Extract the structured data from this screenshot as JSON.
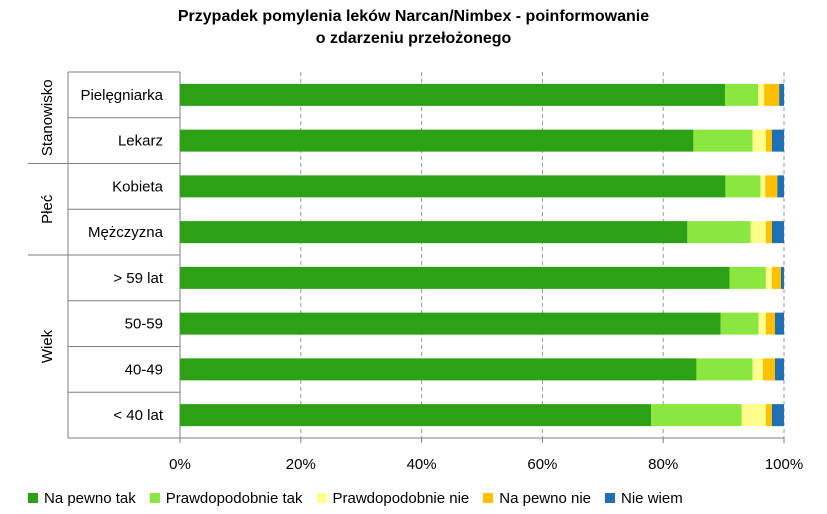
{
  "chart_data": {
    "type": "bar",
    "orientation": "horizontal",
    "stacked": "percent",
    "title": [
      "Przypadek pomylenia leków  Narcan/Nimbex - poinformowanie",
      "o zdarzeniu przełożonego"
    ],
    "xlim": [
      0,
      100
    ],
    "x_ticks": [
      "0%",
      "20%",
      "40%",
      "60%",
      "80%",
      "100%"
    ],
    "grid": "vertical dashed",
    "legend_position": "bottom",
    "groups": [
      {
        "label": "Stanowisko",
        "categories": [
          "Pielęgniarka",
          "Lekarz"
        ]
      },
      {
        "label": "Płeć",
        "categories": [
          "Kobieta",
          "Mężczyzna"
        ]
      },
      {
        "label": "Wiek",
        "categories": [
          "> 59 lat",
          "50-59",
          "40-49",
          "< 40 lat"
        ]
      }
    ],
    "categories": [
      "Pielęgniarka",
      "Lekarz",
      "Kobieta",
      "Mężczyzna",
      "> 59 lat",
      "50-59",
      "40-49",
      "< 40 lat"
    ],
    "series": [
      {
        "name": "Na pewno tak",
        "color": "#2ca116",
        "values": [
          90.5,
          85.0,
          90.3,
          84.0,
          91.0,
          89.5,
          85.5,
          78.0
        ]
      },
      {
        "name": "Prawdopodobnie tak",
        "color": "#8be740",
        "values": [
          5.5,
          9.8,
          5.8,
          10.5,
          6.0,
          6.3,
          9.3,
          15.0
        ]
      },
      {
        "name": "Prawdopodobnie nie",
        "color": "#fffe8c",
        "values": [
          1.0,
          2.2,
          0.8,
          2.5,
          1.0,
          1.2,
          1.7,
          4.0
        ]
      },
      {
        "name": "Na pewno nie",
        "color": "#ffc000",
        "values": [
          2.5,
          1.0,
          2.0,
          1.0,
          1.5,
          1.5,
          2.0,
          1.0
        ]
      },
      {
        "name": "Nie wiem",
        "color": "#1f6fb5",
        "values": [
          0.8,
          2.0,
          1.1,
          2.0,
          0.5,
          1.5,
          1.5,
          2.0
        ]
      }
    ]
  }
}
